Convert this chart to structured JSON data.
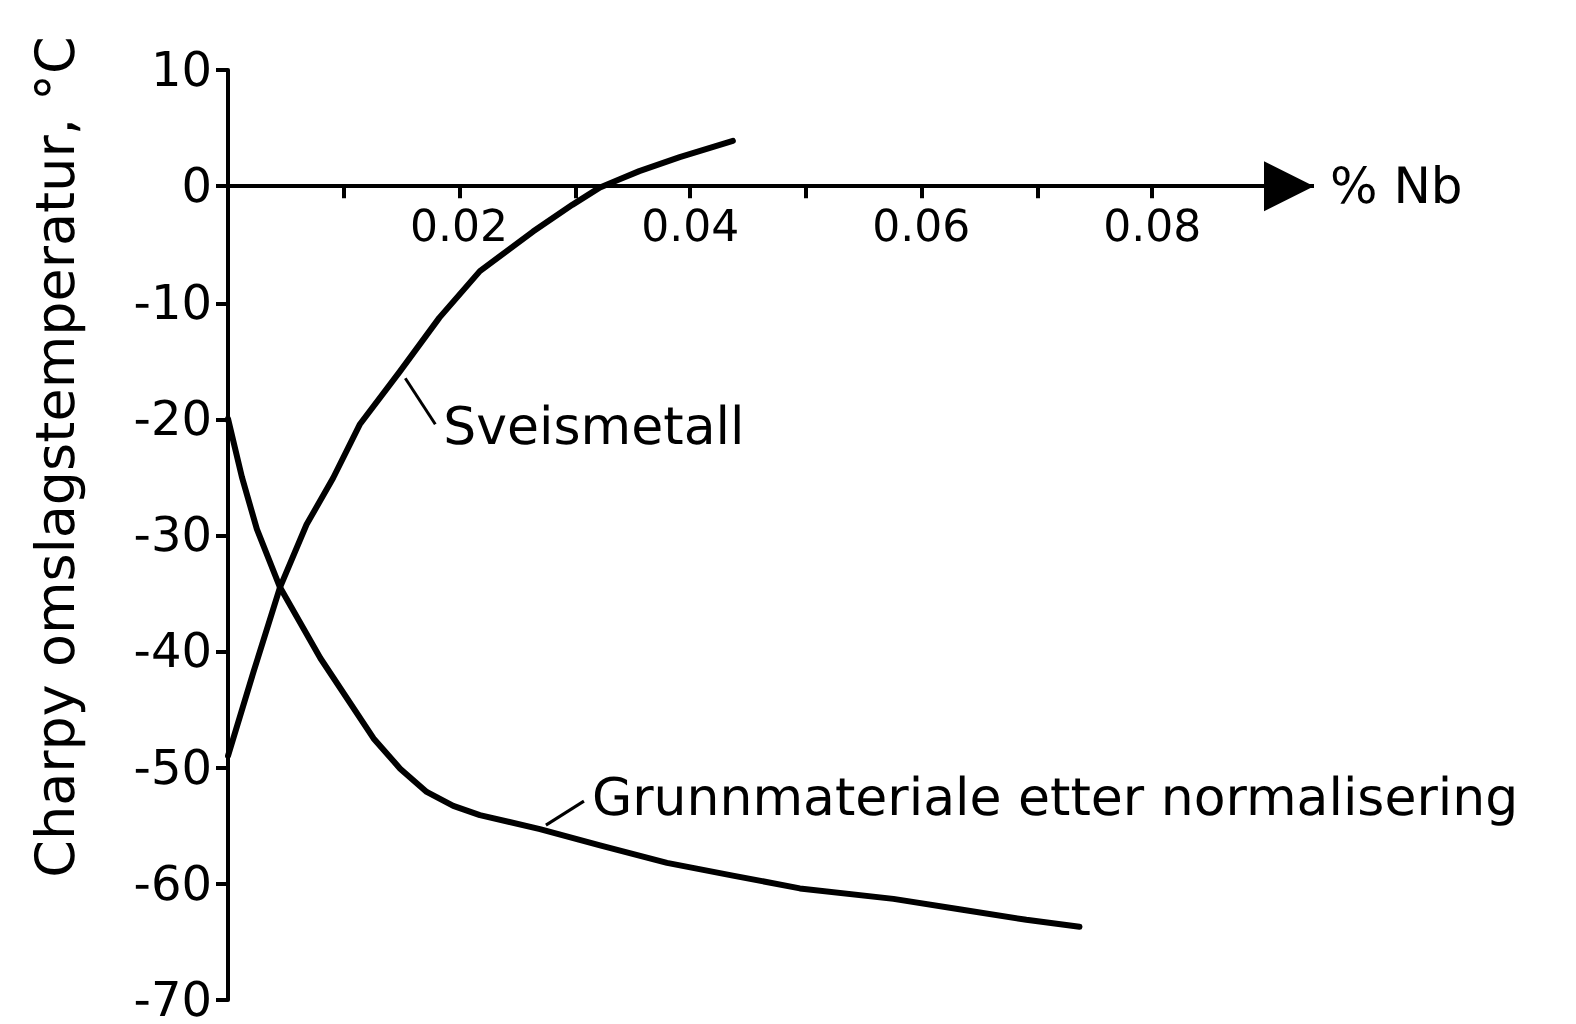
{
  "chart_data": {
    "type": "line",
    "ylabel": "Charpy omslagstemperatur, °C",
    "xlabel": "% Nb",
    "xlim": [
      0,
      0.094
    ],
    "ylim": [
      -70,
      10
    ],
    "xticks": [
      {
        "value": 0.01,
        "label": null
      },
      0.02,
      {
        "value": 0.03,
        "label": null
      },
      0.04,
      {
        "value": 0.05,
        "label": null
      },
      0.06,
      {
        "value": 0.07,
        "label": null
      },
      0.08
    ],
    "yticks": [
      -70,
      -60,
      -50,
      -40,
      -30,
      -20,
      -10,
      0,
      10
    ],
    "series": [
      {
        "color": "#000000",
        "x": [
          0,
          0.0022,
          0.0045,
          0.0068,
          0.0091,
          0.0114,
          0.0149,
          0.0183,
          0.0218,
          0.0241,
          0.0264,
          0.0298,
          0.0322,
          0.0339,
          0.0356,
          0.0391,
          0.0437
        ],
        "values": [
          -49,
          -41.8,
          -34.5,
          -29.1,
          -25.1,
          -20.5,
          -15.9,
          -11.3,
          -7.3,
          -5.6,
          -3.9,
          -1.6,
          -0.1,
          0.6,
          1.3,
          2.5,
          3.9
        ]
      },
      {
        "color": "#000000",
        "x": [
          0,
          0.0012,
          0.0025,
          0.0045,
          0.008,
          0.0126,
          0.0149,
          0.0172,
          0.0195,
          0.0218,
          0.027,
          0.0322,
          0.038,
          0.0437,
          0.0495,
          0.0576,
          0.0633,
          0.0691,
          0.0737
        ],
        "values": [
          -20,
          -25,
          -29.5,
          -34.5,
          -40.6,
          -47.5,
          -50.1,
          -52.1,
          -53.3,
          -54.1,
          -55.3,
          -56.7,
          -58.2,
          -59.3,
          -60.4,
          -61.3,
          -62.2,
          -63.1,
          -63.7
        ]
      }
    ],
    "annotations": [
      {
        "text": "Sveismetall",
        "x": 0.015,
        "y": -16
      },
      {
        "text": "Grunnmateriale etter normalisering",
        "x": 0.027,
        "y": -55.3
      }
    ]
  }
}
